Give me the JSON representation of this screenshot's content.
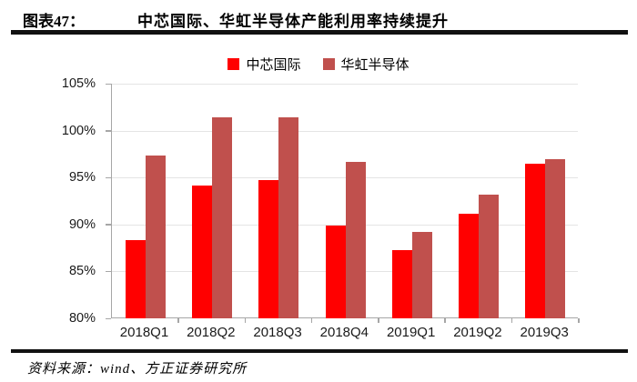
{
  "header": {
    "figure_label": "图表47：",
    "title": "中芯国际、华虹半导体产能利用率持续提升"
  },
  "legend": {
    "items": [
      {
        "label": "中芯国际",
        "color": "#ff0000"
      },
      {
        "label": "华虹半导体",
        "color": "#c0504d"
      }
    ]
  },
  "footer": {
    "source": "资料来源：wind、方正证券研究所"
  },
  "chart_data": {
    "type": "bar",
    "title": "中芯国际、华虹半导体产能利用率持续提升",
    "categories": [
      "2018Q1",
      "2018Q2",
      "2018Q3",
      "2018Q4",
      "2019Q1",
      "2019Q2",
      "2019Q3"
    ],
    "series": [
      {
        "name": "中芯国际",
        "key": "smic",
        "color": "#ff0000",
        "values": [
          88.3,
          94.1,
          94.7,
          89.9,
          87.3,
          91.1,
          96.5
        ]
      },
      {
        "name": "华虹半导体",
        "key": "huahong",
        "color": "#c0504d",
        "values": [
          97.3,
          101.4,
          101.4,
          96.7,
          89.2,
          93.2,
          97.0
        ]
      }
    ],
    "xlabel": "",
    "ylabel": "",
    "ylim": [
      80,
      105
    ],
    "ytick_step": 5,
    "ytick_labels": [
      "80%",
      "85%",
      "90%",
      "95%",
      "100%",
      "105%"
    ],
    "grid": true,
    "legend_position": "top-center",
    "axis_color": "#a6a6a6",
    "gridline_color": "#e4e4e4"
  }
}
